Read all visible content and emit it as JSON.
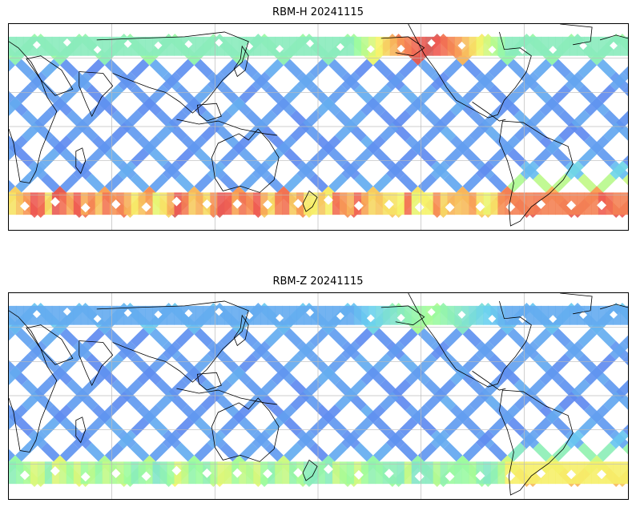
{
  "panels": [
    {
      "title": "RBM-H 20241115",
      "palette": "jet",
      "colormap_stops": [
        "#5a6cf0",
        "#6ad0f0",
        "#9dfc9d",
        "#f6f46a",
        "#f79a55",
        "#ef5a52",
        "#b06060"
      ],
      "regional_levels": {
        "north_pacific_band": 0.9,
        "south_band": 0.85,
        "south_atlantic": 1.0,
        "tropics": 0.05
      }
    },
    {
      "title": "RBM-Z 20241115",
      "palette": "jet",
      "colormap_stops": [
        "#5a6cf0",
        "#6ad0f0",
        "#9dfc9d",
        "#f6f46a",
        "#f79a55",
        "#ef5a52",
        "#b06060"
      ],
      "regional_levels": {
        "north_pacific_band": 0.35,
        "south_band": 0.45,
        "south_atlantic": 0.7,
        "tropics": 0.05
      }
    }
  ],
  "map": {
    "projection": "PlateCarree (central longitude 180)",
    "gridlines": true,
    "coastlines": true,
    "colors": {
      "coastline": "#000000",
      "gridline": "#bbbbbb",
      "frame": "#000000"
    }
  }
}
